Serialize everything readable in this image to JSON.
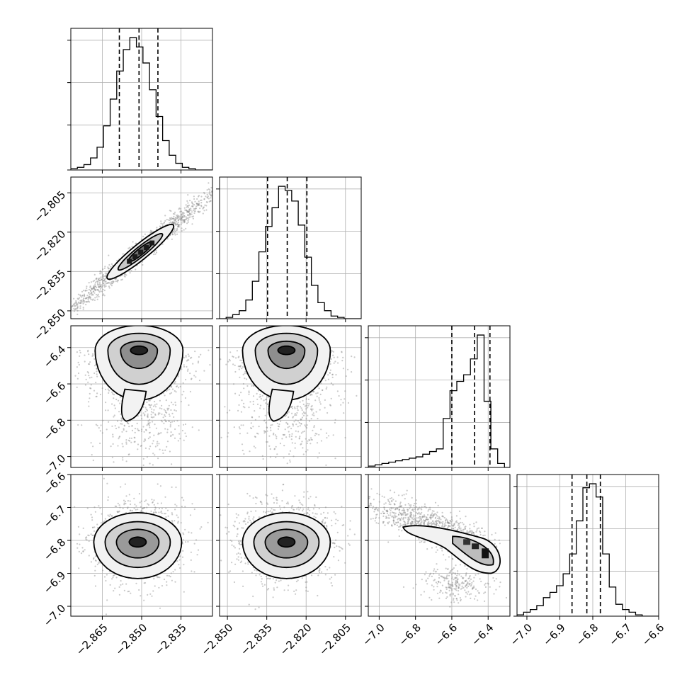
{
  "chart_data": {
    "type": "corner",
    "grid": true,
    "parameters": [
      {
        "range": [
          -2.877,
          -2.823
        ],
        "ticks": [
          -2.865,
          -2.85,
          -2.835
        ],
        "tick_labels": [
          "−2.865",
          "−2.850",
          "−2.835"
        ]
      },
      {
        "range": [
          -2.853,
          -2.799
        ],
        "ticks": [
          -2.85,
          -2.835,
          -2.82,
          -2.805
        ],
        "tick_labels": [
          "−2.850",
          "−2.835",
          "−2.820",
          "−2.805"
        ]
      },
      {
        "range": [
          -7.06,
          -6.28
        ],
        "ticks": [
          -7.0,
          -6.8,
          -6.6,
          -6.4
        ],
        "tick_labels": [
          "−7.0",
          "−6.8",
          "−6.6",
          "−6.4"
        ]
      },
      {
        "range": [
          -7.03,
          -6.6
        ],
        "ticks": [
          -7.0,
          -6.9,
          -6.8,
          -6.7,
          -6.6
        ],
        "tick_labels": [
          "−7.0",
          "−6.9",
          "−6.8",
          "−6.7",
          "−6.6"
        ]
      }
    ],
    "histograms": [
      {
        "edges_from": -2.877,
        "edges_step": 0.0025,
        "counts": [
          1,
          2,
          4,
          9,
          17,
          33,
          53,
          74,
          90,
          99,
          92,
          80,
          60,
          40,
          22,
          11,
          5,
          2,
          1,
          0,
          0,
          0
        ],
        "quantiles": [
          -2.8585,
          -2.851,
          -2.8438
        ]
      },
      {
        "edges_from": -2.853,
        "edges_step": 0.0025,
        "counts": [
          0,
          1,
          3,
          6,
          14,
          28,
          50,
          69,
          83,
          99,
          96,
          88,
          70,
          46,
          25,
          12,
          6,
          2,
          1,
          0,
          0,
          0
        ],
        "quantiles": [
          -2.8347,
          -2.8272,
          -2.8197
        ]
      },
      {
        "edges_from": -7.06,
        "edges_step": 0.0375,
        "counts": [
          1,
          2,
          3,
          4,
          5,
          6,
          7,
          8,
          10,
          12,
          14,
          37,
          58,
          65,
          70,
          82,
          100,
          50,
          14,
          3,
          0
        ],
        "quantiles": [
          -6.6,
          -6.475,
          -6.39
        ]
      },
      {
        "edges_from": -7.03,
        "edges_step": 0.02,
        "counts": [
          1,
          3,
          5,
          8,
          14,
          18,
          23,
          32,
          47,
          72,
          97,
          100,
          90,
          47,
          22,
          9,
          5,
          3,
          1,
          0,
          0,
          0
        ],
        "quantiles": [
          -6.863,
          -6.818,
          -6.777
        ]
      }
    ],
    "pairs": [
      {
        "x": 0,
        "y": 1,
        "centre": [
          -2.8505,
          -2.8275
        ],
        "kind": "elongated"
      },
      {
        "x": 0,
        "y": 2,
        "centre": [
          -2.851,
          -6.415
        ],
        "kind": "tailed"
      },
      {
        "x": 1,
        "y": 2,
        "centre": [
          -2.8275,
          -6.415
        ],
        "kind": "tailed"
      },
      {
        "x": 0,
        "y": 3,
        "centre": [
          -2.8515,
          -6.805
        ],
        "kind": "round"
      },
      {
        "x": 1,
        "y": 3,
        "centre": [
          -2.8275,
          -6.805
        ],
        "kind": "round"
      },
      {
        "x": 2,
        "y": 3,
        "centre": [
          -6.42,
          -6.835
        ],
        "kind": "banana"
      }
    ]
  }
}
